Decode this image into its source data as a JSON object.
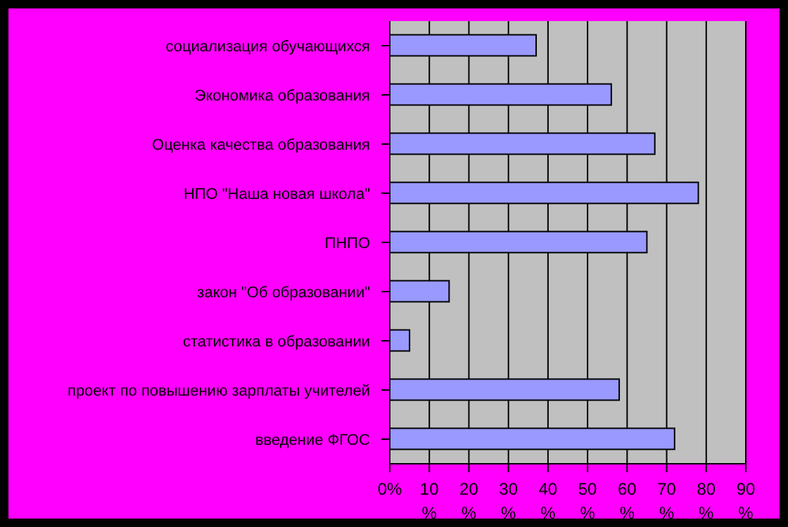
{
  "chart_data": {
    "type": "bar",
    "orientation": "horizontal",
    "categories": [
      "социализация обучающихся",
      "Экономика образования",
      "Оценка качества образования",
      "НПО \"Наша новая школа\"",
      "ПНПО",
      "закон \"Об образовании\"",
      "статистика в образовании",
      "проект по повышению зарплаты учителей",
      "введение ФГОС"
    ],
    "values": [
      37,
      56,
      67,
      78,
      65,
      15,
      5,
      58,
      72
    ],
    "color": "#9999ff",
    "xlim": [
      0,
      90
    ],
    "xticks": [
      {
        "value": 0,
        "label": "0%"
      },
      {
        "value": 10,
        "label": "10 %"
      },
      {
        "value": 20,
        "label": "20 %"
      },
      {
        "value": 30,
        "label": "30 %"
      },
      {
        "value": 40,
        "label": "40 %"
      },
      {
        "value": 50,
        "label": "50 %"
      },
      {
        "value": 60,
        "label": "60 %"
      },
      {
        "value": 70,
        "label": "70 %"
      },
      {
        "value": 80,
        "label": "80 %"
      },
      {
        "value": 90,
        "label": "90 %"
      }
    ],
    "grid": "x",
    "legend": false
  }
}
